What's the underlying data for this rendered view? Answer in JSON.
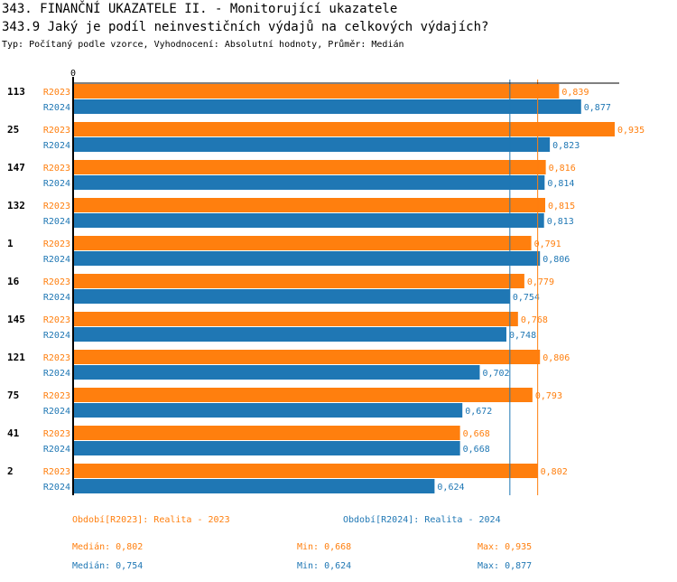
{
  "title": "343. FINANČNÍ UKAZATELE II. - Monitorující ukazatele",
  "subtitle": "343.9 Jaký je podíl neinvestičních výdajů na celkových výdajích?",
  "info": "Typ: Počítaný podle vzorce, Vyhodnocení: Absolutní hodnoty, Průměr: Medián",
  "colors": {
    "r2023": "#ff7f0e",
    "r2024": "#1f77b4"
  },
  "chart_data": {
    "type": "bar",
    "orientation": "horizontal",
    "axis_zero_label": "0",
    "categories": [
      "113",
      "25",
      "147",
      "132",
      "1",
      "16",
      "145",
      "121",
      "75",
      "41",
      "2"
    ],
    "series": [
      {
        "name": "R2023",
        "values": [
          0.839,
          0.935,
          0.816,
          0.815,
          0.791,
          0.779,
          0.768,
          0.806,
          0.793,
          0.668,
          0.802
        ],
        "labels": [
          "0,839",
          "0,935",
          "0,816",
          "0,815",
          "0,791",
          "0,779",
          "0,768",
          "0,806",
          "0,793",
          "0,668",
          "0,802"
        ]
      },
      {
        "name": "R2024",
        "values": [
          0.877,
          0.823,
          0.814,
          0.813,
          0.806,
          0.754,
          0.748,
          0.702,
          0.672,
          0.668,
          0.624
        ],
        "labels": [
          "0,877",
          "0,823",
          "0,814",
          "0,813",
          "0,806",
          "0,754",
          "0,748",
          "0,702",
          "0,672",
          "0,668",
          "0,624"
        ]
      }
    ],
    "medians": {
      "R2023": 0.802,
      "R2024": 0.754
    }
  },
  "legend": {
    "r2023": "Období[R2023]: Realita - 2023",
    "r2024": "Období[R2024]: Realita - 2024"
  },
  "stats": {
    "r2023": {
      "median": "Medián: 0,802",
      "min": "Min: 0,668",
      "max": "Max: 0,935"
    },
    "r2024": {
      "median": "Medián: 0,754",
      "min": "Min: 0,624",
      "max": "Max: 0,877"
    }
  }
}
